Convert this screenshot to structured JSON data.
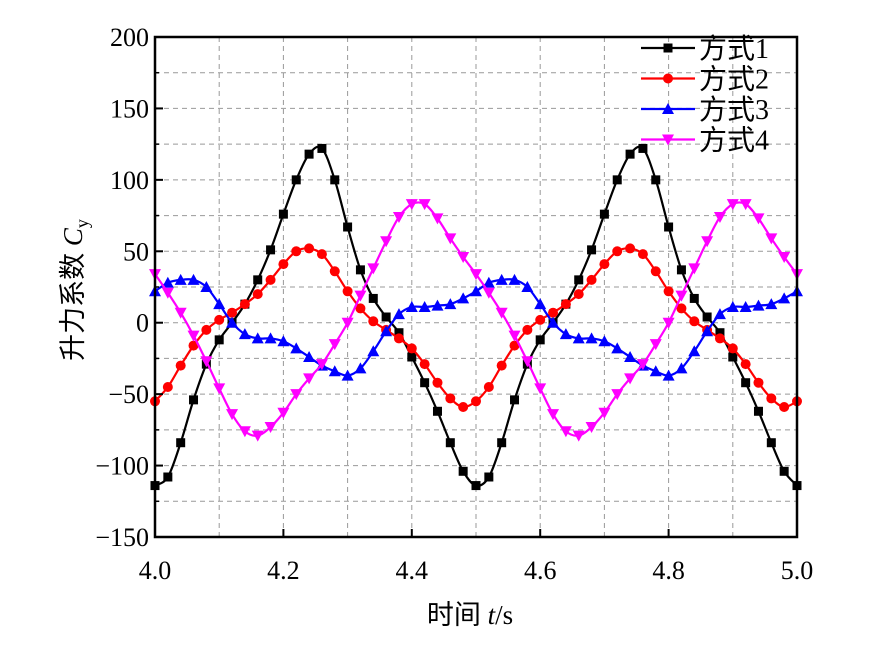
{
  "chart_data": {
    "type": "line",
    "title": "",
    "xlabel": {
      "prefix": "时间 ",
      "var": "t",
      "suffix": "/s"
    },
    "ylabel": {
      "prefix": "升力系数 ",
      "var": "C",
      "sub": "y"
    },
    "xlim": [
      4.0,
      5.0
    ],
    "ylim": [
      -150,
      200
    ],
    "xticks": [
      4.0,
      4.2,
      4.4,
      4.6,
      4.8,
      5.0
    ],
    "xtick_labels": [
      "4.0",
      "4.2",
      "4.4",
      "4.6",
      "4.8",
      "5.0"
    ],
    "yticks": [
      -150,
      -100,
      -50,
      0,
      50,
      100,
      150,
      200
    ],
    "ytick_labels": [
      "−150",
      "−100",
      "−50",
      "0",
      "50",
      "100",
      "150",
      "200"
    ],
    "grid": true,
    "legend_position": "top-right",
    "x": [
      4.0,
      4.02,
      4.04,
      4.06,
      4.08,
      4.1,
      4.12,
      4.14,
      4.16,
      4.18,
      4.2,
      4.22,
      4.24,
      4.26,
      4.28,
      4.3,
      4.32,
      4.34,
      4.36,
      4.38,
      4.4,
      4.42,
      4.44,
      4.46,
      4.48,
      4.5,
      4.52,
      4.54,
      4.56,
      4.58,
      4.6,
      4.62,
      4.64,
      4.66,
      4.68,
      4.7,
      4.72,
      4.74,
      4.76,
      4.78,
      4.8,
      4.82,
      4.84,
      4.86,
      4.88,
      4.9,
      4.92,
      4.94,
      4.96,
      4.98,
      5.0
    ],
    "series": [
      {
        "name": "方式1",
        "color": "#000000",
        "marker": "square",
        "values": [
          -114,
          -108,
          -84,
          -54,
          -29,
          -12,
          0,
          13,
          30,
          51,
          76,
          100,
          118,
          122,
          100,
          67,
          37,
          17,
          4,
          -7,
          -24,
          -42,
          -62,
          -84,
          -104,
          -114,
          -108,
          -84,
          -54,
          -29,
          -12,
          0,
          13,
          30,
          51,
          76,
          100,
          118,
          122,
          100,
          67,
          37,
          17,
          4,
          -7,
          -24,
          -42,
          -62,
          -84,
          -104,
          -114
        ]
      },
      {
        "name": "方式2",
        "color": "#ff0000",
        "marker": "circle",
        "values": [
          -55,
          -45,
          -30,
          -16,
          -5,
          2,
          7,
          13,
          20,
          30,
          41,
          50,
          52,
          48,
          36,
          22,
          10,
          1,
          -5,
          -11,
          -18,
          -29,
          -42,
          -53,
          -59,
          -55,
          -45,
          -30,
          -16,
          -5,
          2,
          7,
          13,
          20,
          30,
          41,
          50,
          52,
          48,
          36,
          22,
          10,
          1,
          -5,
          -11,
          -18,
          -29,
          -42,
          -53,
          -59,
          -55
        ]
      },
      {
        "name": "方式3",
        "color": "#0000ff",
        "marker": "triangle-up",
        "values": [
          22,
          28,
          30,
          30,
          25,
          13,
          0,
          -8,
          -11,
          -11,
          -13,
          -18,
          -24,
          -30,
          -34,
          -37,
          -32,
          -20,
          -6,
          6,
          11,
          11,
          12,
          13,
          17,
          22,
          28,
          30,
          30,
          25,
          13,
          0,
          -8,
          -11,
          -11,
          -13,
          -18,
          -24,
          -30,
          -34,
          -37,
          -32,
          -20,
          -6,
          6,
          11,
          11,
          12,
          13,
          17,
          22
        ]
      },
      {
        "name": "方式4",
        "color": "#ff00ff",
        "marker": "triangle-down",
        "values": [
          34,
          21,
          7,
          -9,
          -27,
          -46,
          -64,
          -76,
          -79,
          -73,
          -63,
          -50,
          -39,
          -29,
          -15,
          0,
          19,
          38,
          57,
          74,
          83,
          83,
          73,
          59,
          46,
          34,
          21,
          7,
          -9,
          -27,
          -46,
          -64,
          -76,
          -79,
          -73,
          -63,
          -50,
          -39,
          -29,
          -15,
          0,
          19,
          38,
          57,
          74,
          83,
          83,
          73,
          59,
          46,
          34
        ]
      }
    ]
  }
}
